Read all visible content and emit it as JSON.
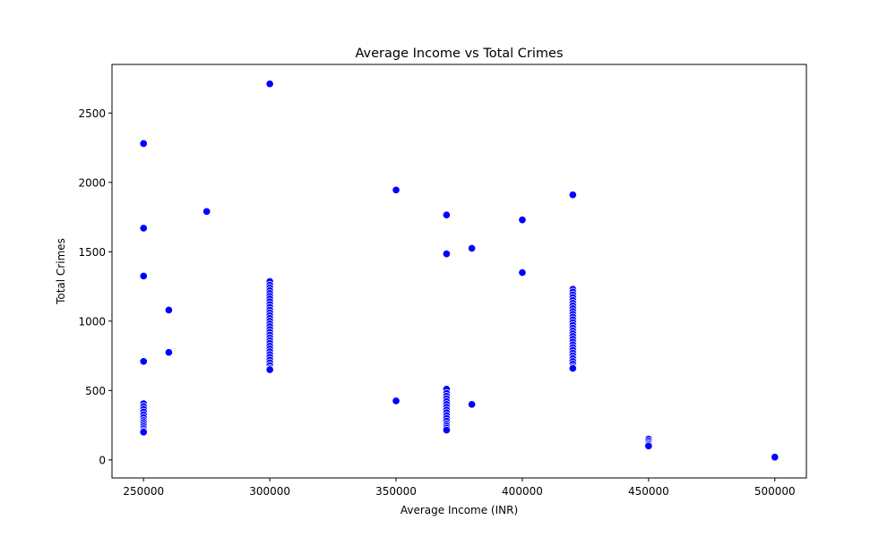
{
  "chart_data": {
    "type": "scatter",
    "title": "Average Income vs Total Crimes",
    "xlabel": "Average Income (INR)",
    "ylabel": "Total Crimes",
    "xlim": [
      237500,
      512500
    ],
    "ylim": [
      -130,
      2850
    ],
    "xticks": [
      250000,
      300000,
      350000,
      400000,
      450000,
      500000
    ],
    "yticks": [
      0,
      500,
      1000,
      1500,
      2000,
      2500
    ],
    "grid": false,
    "legend": "none",
    "marker_color": "#0000ff",
    "marker_edge_color": "#ffffff",
    "points": [
      [
        250000,
        2280
      ],
      [
        250000,
        1670
      ],
      [
        250000,
        1325
      ],
      [
        250000,
        710
      ],
      [
        250000,
        405
      ],
      [
        250000,
        385
      ],
      [
        250000,
        365
      ],
      [
        250000,
        345
      ],
      [
        250000,
        325
      ],
      [
        250000,
        305
      ],
      [
        250000,
        285
      ],
      [
        250000,
        270
      ],
      [
        250000,
        255
      ],
      [
        250000,
        240
      ],
      [
        250000,
        225
      ],
      [
        250000,
        210
      ],
      [
        250000,
        200
      ],
      [
        260000,
        1080
      ],
      [
        260000,
        775
      ],
      [
        275000,
        1790
      ],
      [
        300000,
        2710
      ],
      [
        300000,
        1285
      ],
      [
        300000,
        1260
      ],
      [
        300000,
        1240
      ],
      [
        300000,
        1220
      ],
      [
        300000,
        1200
      ],
      [
        300000,
        1180
      ],
      [
        300000,
        1160
      ],
      [
        300000,
        1140
      ],
      [
        300000,
        1120
      ],
      [
        300000,
        1100
      ],
      [
        300000,
        1080
      ],
      [
        300000,
        1060
      ],
      [
        300000,
        1040
      ],
      [
        300000,
        1020
      ],
      [
        300000,
        1000
      ],
      [
        300000,
        980
      ],
      [
        300000,
        960
      ],
      [
        300000,
        940
      ],
      [
        300000,
        920
      ],
      [
        300000,
        900
      ],
      [
        300000,
        880
      ],
      [
        300000,
        860
      ],
      [
        300000,
        840
      ],
      [
        300000,
        820
      ],
      [
        300000,
        800
      ],
      [
        300000,
        780
      ],
      [
        300000,
        760
      ],
      [
        300000,
        740
      ],
      [
        300000,
        720
      ],
      [
        300000,
        700
      ],
      [
        300000,
        680
      ],
      [
        300000,
        660
      ],
      [
        300000,
        650
      ],
      [
        350000,
        1945
      ],
      [
        350000,
        425
      ],
      [
        370000,
        1765
      ],
      [
        370000,
        1485
      ],
      [
        370000,
        510
      ],
      [
        370000,
        480
      ],
      [
        370000,
        460
      ],
      [
        370000,
        440
      ],
      [
        370000,
        420
      ],
      [
        370000,
        400
      ],
      [
        370000,
        380
      ],
      [
        370000,
        360
      ],
      [
        370000,
        340
      ],
      [
        370000,
        320
      ],
      [
        370000,
        300
      ],
      [
        370000,
        280
      ],
      [
        370000,
        260
      ],
      [
        370000,
        245
      ],
      [
        370000,
        230
      ],
      [
        370000,
        215
      ],
      [
        380000,
        1525
      ],
      [
        380000,
        400
      ],
      [
        400000,
        1730
      ],
      [
        400000,
        1350
      ],
      [
        420000,
        1910
      ],
      [
        420000,
        1230
      ],
      [
        420000,
        1210
      ],
      [
        420000,
        1190
      ],
      [
        420000,
        1170
      ],
      [
        420000,
        1150
      ],
      [
        420000,
        1130
      ],
      [
        420000,
        1110
      ],
      [
        420000,
        1090
      ],
      [
        420000,
        1070
      ],
      [
        420000,
        1050
      ],
      [
        420000,
        1030
      ],
      [
        420000,
        1010
      ],
      [
        420000,
        990
      ],
      [
        420000,
        970
      ],
      [
        420000,
        950
      ],
      [
        420000,
        930
      ],
      [
        420000,
        910
      ],
      [
        420000,
        890
      ],
      [
        420000,
        870
      ],
      [
        420000,
        850
      ],
      [
        420000,
        830
      ],
      [
        420000,
        810
      ],
      [
        420000,
        790
      ],
      [
        420000,
        770
      ],
      [
        420000,
        750
      ],
      [
        420000,
        730
      ],
      [
        420000,
        710
      ],
      [
        420000,
        690
      ],
      [
        420000,
        670
      ],
      [
        420000,
        660
      ],
      [
        450000,
        150
      ],
      [
        450000,
        135
      ],
      [
        450000,
        120
      ],
      [
        450000,
        110
      ],
      [
        450000,
        100
      ],
      [
        500000,
        20
      ]
    ]
  }
}
